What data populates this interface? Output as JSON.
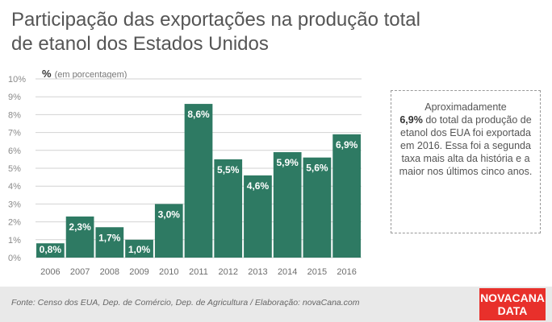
{
  "title": "Participação das exportações na produção total de etanol dos Estados Unidos",
  "unit_symbol": "%",
  "unit_text": "(em porcentagem)",
  "note": {
    "pre": "Aproximadamente",
    "bold": "6,9%",
    "post": "do total da produção de etanol dos EUA foi exportada em 2016. Essa foi a segunda taxa mais alta da história e a maior nos últimos cinco anos."
  },
  "source": "Fonte: Censo dos EUA, Dep. de Comércio, Dep. de Agricultura / Elaboração: novaCana.com",
  "logo": {
    "line1": "NOVACANA",
    "line2": "DATA"
  },
  "colors": {
    "bar": "#2e7a63",
    "title": "#555555",
    "logo_bg": "#e8302b",
    "footer_bg": "#e9e9e9"
  },
  "chart_data": {
    "type": "bar",
    "categories": [
      "2006",
      "2007",
      "2008",
      "2009",
      "2010",
      "2011",
      "2012",
      "2013",
      "2014",
      "2015",
      "2016"
    ],
    "values": [
      0.8,
      2.3,
      1.7,
      1.0,
      3.0,
      8.6,
      5.5,
      4.6,
      5.9,
      5.6,
      6.9
    ],
    "data_labels": [
      "0,8%",
      "2,3%",
      "1,7%",
      "1,0%",
      "3,0%",
      "8,6%",
      "5,5%",
      "4,6%",
      "5,9%",
      "5,6%",
      "6,9%"
    ],
    "yticks": [
      "0%",
      "1%",
      "2%",
      "3%",
      "4%",
      "5%",
      "6%",
      "7%",
      "8%",
      "9%",
      "10%"
    ],
    "ylim": [
      0,
      10
    ],
    "grid": true
  }
}
